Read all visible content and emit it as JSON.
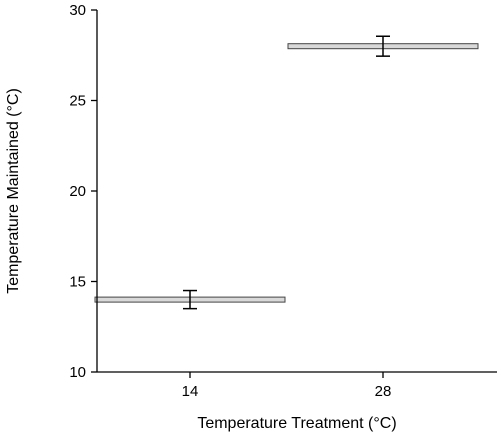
{
  "chart_data": {
    "type": "scatter",
    "title": "",
    "xlabel": "Temperature Treatment (°C)",
    "ylabel": "Temperature Maintained (°C)",
    "categories": [
      "14",
      "28"
    ],
    "ylim": [
      10,
      30
    ],
    "yticks": [
      "10",
      "15",
      "20",
      "25",
      "30"
    ],
    "grid": false,
    "legend": "none",
    "series": [
      {
        "points": [
          {
            "x": "14",
            "y": 14.0,
            "error": 0.5
          },
          {
            "x": "28",
            "y": 28.0,
            "error": 0.55
          }
        ]
      }
    ],
    "colors": {
      "axis": "#000000",
      "mean_bar_fill": "#d9d9d9",
      "mean_bar_stroke": "#444444"
    }
  }
}
